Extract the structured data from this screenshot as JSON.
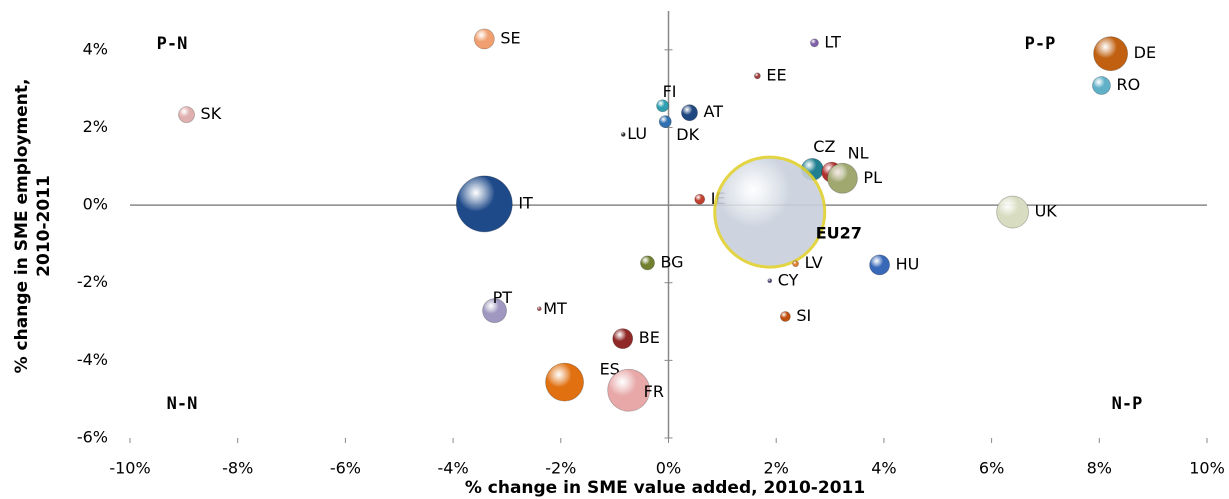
{
  "chart_data": {
    "type": "scatter",
    "xlabel": "% change in SME value added, 2010-2011",
    "ylabel": [
      "% change in SME employment,",
      "2010-2011"
    ],
    "xlim": [
      -10,
      10
    ],
    "xticks": [
      {
        "value": -10,
        "label": "-10%"
      },
      {
        "value": -8,
        "label": "-8%"
      },
      {
        "value": -6,
        "label": "-6%"
      },
      {
        "value": -4,
        "label": "-4%"
      },
      {
        "value": -2,
        "label": "-2%"
      },
      {
        "value": 0,
        "label": "0%"
      },
      {
        "value": 2,
        "label": "2%"
      },
      {
        "value": 4,
        "label": "4%"
      },
      {
        "value": 6,
        "label": "6%"
      },
      {
        "value": 8,
        "label": "8%"
      },
      {
        "value": 10,
        "label": "10%"
      }
    ],
    "ylim": [
      -6,
      5
    ],
    "yticks": [
      {
        "value": -6,
        "label": "-6%"
      },
      {
        "value": -4,
        "label": "-4%"
      },
      {
        "value": -2,
        "label": "-2%"
      },
      {
        "value": 0,
        "label": "0%"
      },
      {
        "value": 2,
        "label": "2%"
      },
      {
        "value": 4,
        "label": "4%"
      }
    ],
    "annotations": [
      "P-N",
      "P-P",
      "N-N",
      "N-P"
    ],
    "points": [
      {
        "name": "SE",
        "x": -3.42,
        "y": 4.28,
        "size": 100,
        "color": "#f0a070"
      },
      {
        "name": "LT",
        "x": 2.71,
        "y": 4.18,
        "size": 16,
        "color": "#8060a8"
      },
      {
        "name": "DE",
        "x": 8.21,
        "y": 3.9,
        "size": 290,
        "color": "#c06010"
      },
      {
        "name": "EE",
        "x": 1.65,
        "y": 3.33,
        "size": 9,
        "color": "#a04040"
      },
      {
        "name": "RO",
        "x": 8.04,
        "y": 3.08,
        "size": 81,
        "color": "#60b0c8"
      },
      {
        "name": "SK",
        "x": -8.95,
        "y": 2.33,
        "size": 64,
        "color": "#e0b0b0"
      },
      {
        "name": "FI",
        "x": -0.11,
        "y": 2.56,
        "size": 36,
        "color": "#30a0b0"
      },
      {
        "name": "AT",
        "x": 0.39,
        "y": 2.38,
        "size": 64,
        "color": "#204880"
      },
      {
        "name": "LU",
        "x": -0.84,
        "y": 1.82,
        "size": 4,
        "color": "#303030"
      },
      {
        "name": "DK",
        "x": -0.06,
        "y": 2.15,
        "size": 36,
        "color": "#3070b0"
      },
      {
        "name": "CZ",
        "x": 2.67,
        "y": 0.92,
        "size": 121,
        "color": "#208090"
      },
      {
        "name": "NL",
        "x": 3.03,
        "y": 0.85,
        "size": 100,
        "color": "#b03030"
      },
      {
        "name": "PL",
        "x": 3.23,
        "y": 0.69,
        "size": 225,
        "color": "#a0a870"
      },
      {
        "name": "IT",
        "x": -3.42,
        "y": 0.03,
        "size": 784,
        "color": "#1f4a8a"
      },
      {
        "name": "IE",
        "x": 0.58,
        "y": 0.15,
        "size": 25,
        "color": "#c04030"
      },
      {
        "name": "EU27",
        "x": 1.88,
        "y": -0.18,
        "size": 3025,
        "color": "#c8d0dc"
      },
      {
        "name": "UK",
        "x": 6.39,
        "y": -0.18,
        "size": 256,
        "color": "#d8dcc0"
      },
      {
        "name": "BG",
        "x": -0.39,
        "y": -1.49,
        "size": 49,
        "color": "#708030"
      },
      {
        "name": "LV",
        "x": 2.36,
        "y": -1.51,
        "size": 9,
        "color": "#e08030"
      },
      {
        "name": "HU",
        "x": 3.92,
        "y": -1.54,
        "size": 100,
        "color": "#3868b8"
      },
      {
        "name": "CY",
        "x": 1.88,
        "y": -1.95,
        "size": 4,
        "color": "#504878"
      },
      {
        "name": "PT",
        "x": -3.23,
        "y": -2.72,
        "size": 144,
        "color": "#a098c0"
      },
      {
        "name": "MT",
        "x": -2.4,
        "y": -2.67,
        "size": 4,
        "color": "#a05050"
      },
      {
        "name": "SI",
        "x": 2.17,
        "y": -2.87,
        "size": 25,
        "color": "#c05010"
      },
      {
        "name": "BE",
        "x": -0.85,
        "y": -3.44,
        "size": 100,
        "color": "#902828"
      },
      {
        "name": "ES",
        "x": -1.93,
        "y": -4.56,
        "size": 361,
        "color": "#e07010"
      },
      {
        "name": "FR",
        "x": -0.74,
        "y": -4.77,
        "size": 441,
        "color": "#e8a8a8"
      }
    ]
  }
}
